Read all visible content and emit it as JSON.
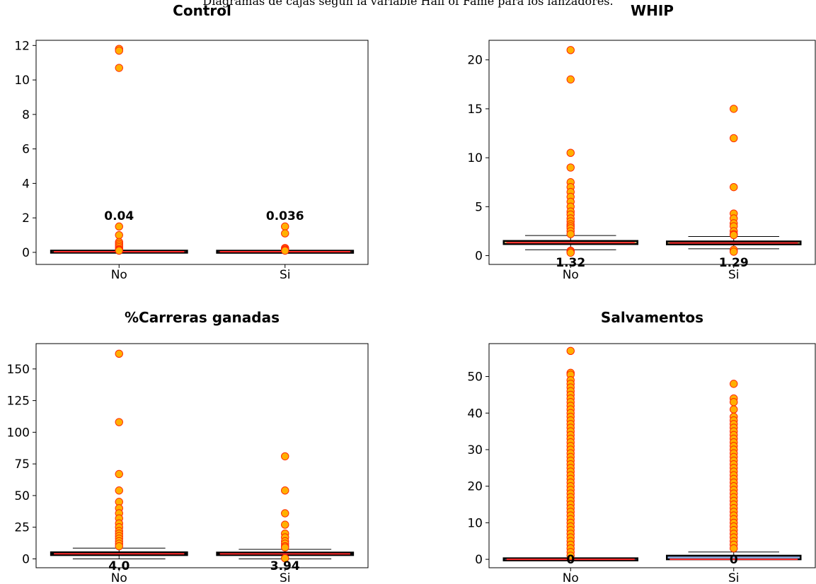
{
  "caption": "Diagramas de cajas según la variable Hall of Fame para los lanzadores.",
  "chart_data": [
    {
      "type": "box",
      "title": "Control",
      "categories": [
        "No",
        "Si"
      ],
      "ylim": [
        -0.7,
        12.3
      ],
      "yticks": [
        0,
        2,
        4,
        6,
        8,
        10,
        12
      ],
      "box_color": "#c0504d",
      "series": [
        {
          "category": "No",
          "q1": 0.02,
          "median": 0.04,
          "q3": 0.06,
          "whisker_low": 0.0,
          "whisker_high": 0.1,
          "median_label": "0.04",
          "label_position": "above",
          "outliers": [
            11.8,
            11.7,
            10.7,
            1.5,
            1.0,
            0.6,
            0.5,
            0.4,
            0.3,
            0.2,
            0.15,
            0.1
          ]
        },
        {
          "category": "Si",
          "q1": 0.02,
          "median": 0.036,
          "q3": 0.05,
          "whisker_low": 0.0,
          "whisker_high": 0.08,
          "median_label": "0.036",
          "label_position": "above",
          "outliers": [
            1.5,
            1.1,
            0.25,
            0.2,
            0.15,
            0.1
          ]
        }
      ]
    },
    {
      "type": "box",
      "title": "WHIP",
      "categories": [
        "No",
        "Si"
      ],
      "ylim": [
        -0.9,
        22
      ],
      "yticks": [
        0,
        5,
        10,
        15,
        20
      ],
      "box_color": "#c8a060",
      "series": [
        {
          "category": "No",
          "q1": 1.18,
          "median": 1.32,
          "q3": 1.5,
          "whisker_low": 0.6,
          "whisker_high": 2.05,
          "median_label": "1.32",
          "label_position": "below",
          "outliers": [
            21,
            18,
            10.5,
            9,
            7.5,
            7,
            6.5,
            6,
            5.5,
            5,
            4.5,
            4.2,
            3.8,
            3.5,
            3.2,
            3,
            2.8,
            2.5,
            2.2,
            0.5,
            0.4,
            0.3
          ]
        },
        {
          "category": "Si",
          "q1": 1.15,
          "median": 1.29,
          "q3": 1.45,
          "whisker_low": 0.7,
          "whisker_high": 1.95,
          "median_label": "1.29",
          "label_position": "below",
          "outliers": [
            15,
            12,
            7,
            4.3,
            3.8,
            3.3,
            3,
            2.5,
            2.2,
            2.1,
            0.6,
            0.4
          ]
        }
      ]
    },
    {
      "type": "box",
      "title": "%Carreras ganadas",
      "categories": [
        "No",
        "Si"
      ],
      "ylim": [
        -7,
        170
      ],
      "yticks": [
        0,
        25,
        50,
        75,
        100,
        125,
        150
      ],
      "box_color": "#000000",
      "series": [
        {
          "category": "No",
          "q1": 3.0,
          "median": 4.0,
          "q3": 5.2,
          "whisker_low": 0.0,
          "whisker_high": 8.5,
          "median_label": "4.0",
          "label_position": "below",
          "outliers": [
            162,
            108,
            67,
            54,
            45,
            40,
            36,
            32,
            28,
            25,
            22,
            20,
            18,
            16,
            14,
            12,
            10
          ]
        },
        {
          "category": "Si",
          "q1": 3.0,
          "median": 3.94,
          "q3": 5.0,
          "whisker_low": 0.0,
          "whisker_high": 7.5,
          "median_label": "3.94",
          "label_position": "below",
          "outliers": [
            81,
            54,
            36,
            27,
            20,
            17,
            14,
            12,
            10,
            9,
            0.5
          ]
        }
      ]
    },
    {
      "type": "box",
      "title": "Salvamentos",
      "categories": [
        "No",
        "Si"
      ],
      "ylim": [
        -2.3,
        59
      ],
      "yticks": [
        0,
        10,
        20,
        30,
        40,
        50
      ],
      "box_color": "#8faadc",
      "series": [
        {
          "category": "No",
          "q1": 0,
          "median": 0,
          "q3": 0,
          "whisker_low": 0,
          "whisker_high": 0,
          "median_label": "0",
          "label_position": "center",
          "outliers": [
            57,
            51,
            50.5,
            49,
            48,
            47,
            46,
            45,
            44,
            43,
            42,
            41,
            40,
            39,
            38,
            37,
            36,
            35,
            34,
            33,
            32,
            31,
            30,
            29,
            28,
            27,
            26,
            25,
            24,
            23,
            22,
            21,
            20,
            19,
            18,
            17,
            16,
            15,
            14,
            13,
            12,
            11,
            10,
            9,
            8,
            7,
            6,
            5,
            4,
            3,
            2,
            1
          ]
        },
        {
          "category": "Si",
          "q1": 0,
          "median": 0,
          "q3": 1,
          "whisker_low": 0,
          "whisker_high": 2,
          "median_label": "0",
          "label_position": "center",
          "outliers": [
            48,
            44,
            43,
            41,
            39,
            38,
            37,
            36,
            35,
            34,
            33,
            32,
            31,
            30,
            29,
            28,
            27,
            26,
            25,
            24,
            23,
            22,
            21,
            20,
            19,
            18,
            17,
            16,
            15,
            14,
            13,
            12,
            11,
            10,
            9,
            8,
            7,
            6,
            5,
            4,
            3
          ]
        }
      ]
    }
  ]
}
